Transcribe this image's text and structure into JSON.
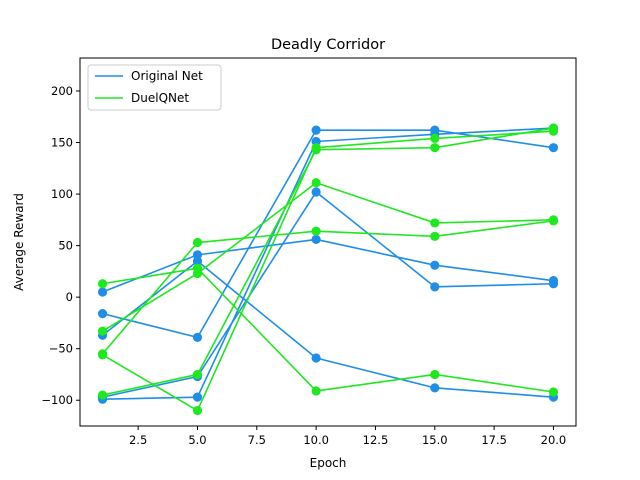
{
  "chart_data": {
    "type": "line",
    "title": "Deadly Corridor",
    "xlabel": "Epoch",
    "ylabel": "Average Reward",
    "xlim": [
      0.05,
      20.95
    ],
    "ylim": [
      -125,
      232
    ],
    "x": [
      1,
      5,
      10,
      15,
      20
    ],
    "xticks": [
      2.5,
      5.0,
      7.5,
      10.0,
      12.5,
      15.0,
      17.5,
      20.0
    ],
    "xtick_labels": [
      "2.5",
      "5.0",
      "7.5",
      "10.0",
      "12.5",
      "15.0",
      "17.5",
      "20.0"
    ],
    "yticks": [
      -100,
      -50,
      0,
      50,
      100,
      150,
      200
    ],
    "ytick_labels": [
      "−100",
      "−50",
      "0",
      "50",
      "100",
      "150",
      "200"
    ],
    "grid": false,
    "legend_position": "top-left",
    "legend": [
      {
        "label": "Original Net",
        "color": "#1f8ee8"
      },
      {
        "label": "DuelQNet",
        "color": "#1ee81e"
      }
    ],
    "series": [
      {
        "group": "Original Net",
        "color": "#1f8ee8",
        "values": [
          -97,
          -77,
          102,
          10,
          13
        ]
      },
      {
        "group": "Original Net",
        "color": "#1f8ee8",
        "values": [
          -99,
          -97,
          151,
          158,
          164
        ]
      },
      {
        "group": "Original Net",
        "color": "#1f8ee8",
        "values": [
          -16,
          -39,
          162,
          162,
          145
        ]
      },
      {
        "group": "Original Net",
        "color": "#1f8ee8",
        "values": [
          -37,
          35,
          -59,
          -88,
          -97
        ]
      },
      {
        "group": "Original Net",
        "color": "#1f8ee8",
        "values": [
          5,
          41,
          56,
          31,
          16
        ]
      },
      {
        "group": "DuelQNet",
        "color": "#1ee81e",
        "values": [
          -56,
          -110,
          145,
          154,
          161
        ]
      },
      {
        "group": "DuelQNet",
        "color": "#1ee81e",
        "values": [
          -95,
          -75,
          143,
          145,
          164
        ]
      },
      {
        "group": "DuelQNet",
        "color": "#1ee81e",
        "values": [
          -33,
          23,
          111,
          72,
          75
        ]
      },
      {
        "group": "DuelQNet",
        "color": "#1ee81e",
        "values": [
          13,
          28,
          -91,
          -75,
          -92
        ]
      },
      {
        "group": "DuelQNet",
        "color": "#1ee81e",
        "values": [
          -55,
          53,
          64,
          59,
          74
        ]
      }
    ]
  }
}
